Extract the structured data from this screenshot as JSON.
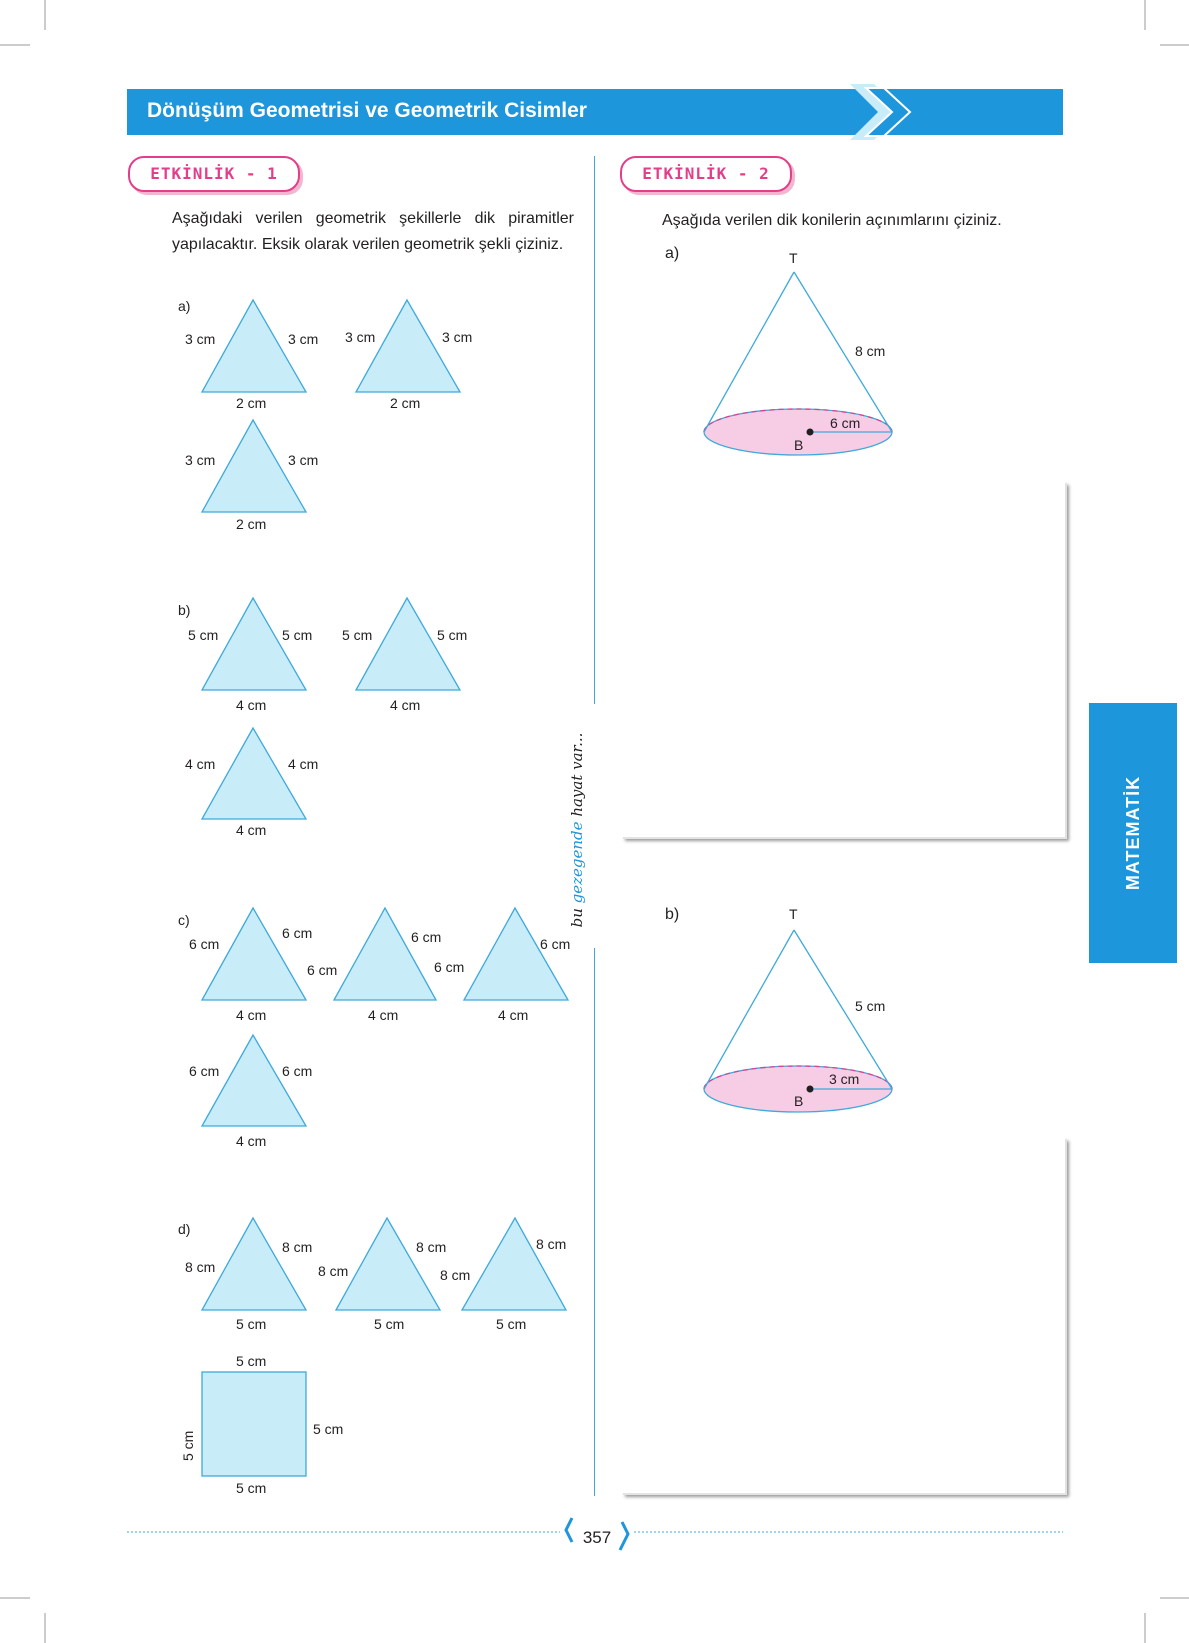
{
  "header": {
    "title": "Dönüşüm Geometrisi ve Geometrik Cisimler"
  },
  "etkinlik1": {
    "badge": "ETKİNLİK - 1",
    "intro": "Aşağıdaki verilen geometrik şekillerle dik piramitler yapılacaktır. Eksik olarak verilen geometrik şekli çiziniz.",
    "a": {
      "label": "a)",
      "triangles": [
        {
          "left": "3 cm",
          "right": "3 cm",
          "base": "2 cm"
        },
        {
          "left": "3 cm",
          "right": "3 cm",
          "base": "2 cm"
        },
        {
          "left": "3 cm",
          "right": "3 cm",
          "base": "2 cm"
        }
      ]
    },
    "b": {
      "label": "b)",
      "triangles": [
        {
          "left": "5 cm",
          "right": "5 cm",
          "base": "4 cm"
        },
        {
          "left": "5 cm",
          "right": "5 cm",
          "base": "4 cm"
        },
        {
          "left": "4 cm",
          "right": "4 cm",
          "base": "4 cm"
        }
      ]
    },
    "c": {
      "label": "c)",
      "triangles": [
        {
          "left": "6 cm",
          "right": "6 cm",
          "inner": "6 cm",
          "base": "4 cm"
        },
        {
          "right": "6 cm",
          "inner": "6 cm",
          "base": "4 cm"
        },
        {
          "right": "6 cm",
          "base": "4 cm"
        },
        {
          "left": "6 cm",
          "right": "6 cm",
          "base": "4 cm"
        }
      ]
    },
    "d": {
      "label": "d)",
      "triangles": [
        {
          "left": "8 cm",
          "right": "8 cm",
          "inner": "8 cm",
          "base": "5 cm"
        },
        {
          "right": "8 cm",
          "inner": "8 cm",
          "base": "5 cm"
        },
        {
          "right": "8 cm",
          "base": "5 cm"
        }
      ],
      "square": {
        "top": "5 cm",
        "left": "5 cm",
        "right": "5 cm",
        "bottom": "5 cm"
      }
    }
  },
  "etkinlik2": {
    "badge": "ETKİNLİK - 2",
    "intro": "Aşağıda verilen dik konilerin açınımlarını çiziniz.",
    "a": {
      "label": "a)",
      "apex": "T",
      "center": "B",
      "slant": "8 cm",
      "radius": "6 cm"
    },
    "b": {
      "label": "b)",
      "apex": "T",
      "center": "B",
      "slant": "5 cm",
      "radius": "3 cm"
    }
  },
  "slogan": {
    "part1": "bu ",
    "highlight": "gezegende",
    "part2": " hayat var..."
  },
  "side_tab": "MATEMATİK",
  "page_number": "357",
  "colors": {
    "brand_blue": "#1e96dc",
    "badge_pink": "#e33e8a",
    "shape_fill": "#c8ecf8",
    "shape_stroke": "#3fa9dc",
    "cone_base": "#f7cde6"
  }
}
